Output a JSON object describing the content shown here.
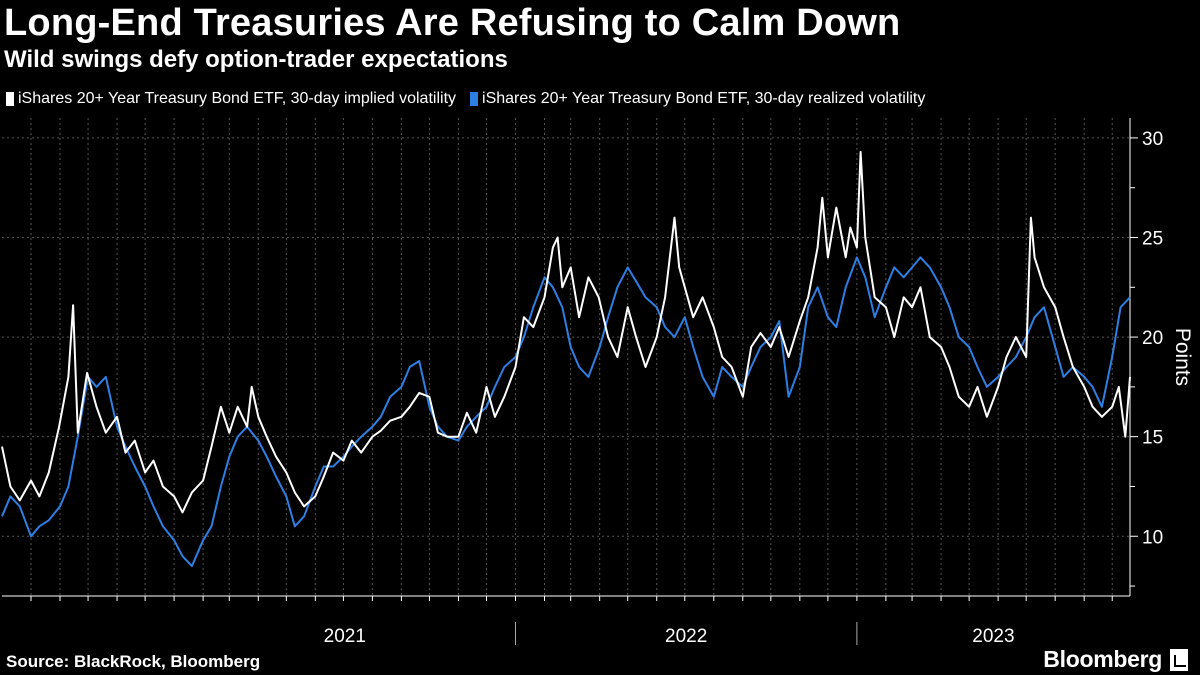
{
  "header": {
    "title": "Long-End Treasuries Are Refusing to Calm Down",
    "subtitle": "Wild swings defy option-trader expectations"
  },
  "footer": {
    "source": "Source: BlackRock, Bloomberg",
    "brand": "Bloomberg"
  },
  "colors": {
    "implied": "#ffffff",
    "realized": "#2e7fe3",
    "grid": "#555555",
    "background": "#000000"
  },
  "chart_data": {
    "type": "line",
    "ylabel": "Points",
    "ylim": [
      7,
      31
    ],
    "yticks": [
      10,
      15,
      20,
      25,
      30
    ],
    "xlim": [
      "2020-07-01",
      "2023-10-20"
    ],
    "year_labels": [
      "2021",
      "2022",
      "2023"
    ],
    "grid": true,
    "legend_position": "top-left",
    "series": [
      {
        "name": "iShares 20+ Year Treasury Bond ETF, 30-day implied volatility",
        "color": "#ffffff",
        "points": [
          [
            "2020-07-01",
            14.5
          ],
          [
            "2020-07-10",
            12.5
          ],
          [
            "2020-07-20",
            11.8
          ],
          [
            "2020-08-01",
            12.8
          ],
          [
            "2020-08-10",
            12.0
          ],
          [
            "2020-08-20",
            13.2
          ],
          [
            "2020-08-31",
            15.5
          ],
          [
            "2020-09-10",
            18.0
          ],
          [
            "2020-09-15",
            21.6
          ],
          [
            "2020-09-20",
            15.2
          ],
          [
            "2020-09-30",
            18.2
          ],
          [
            "2020-10-10",
            16.5
          ],
          [
            "2020-10-20",
            15.2
          ],
          [
            "2020-11-01",
            16.0
          ],
          [
            "2020-11-10",
            14.2
          ],
          [
            "2020-11-20",
            14.8
          ],
          [
            "2020-12-01",
            13.2
          ],
          [
            "2020-12-10",
            13.8
          ],
          [
            "2020-12-20",
            12.5
          ],
          [
            "2021-01-01",
            12.0
          ],
          [
            "2021-01-10",
            11.2
          ],
          [
            "2021-01-20",
            12.2
          ],
          [
            "2021-02-01",
            12.8
          ],
          [
            "2021-02-10",
            14.5
          ],
          [
            "2021-02-20",
            16.5
          ],
          [
            "2021-03-01",
            15.2
          ],
          [
            "2021-03-10",
            16.5
          ],
          [
            "2021-03-20",
            15.5
          ],
          [
            "2021-03-25",
            17.5
          ],
          [
            "2021-04-01",
            16.0
          ],
          [
            "2021-04-10",
            15.0
          ],
          [
            "2021-04-20",
            14.0
          ],
          [
            "2021-05-01",
            13.2
          ],
          [
            "2021-05-10",
            12.2
          ],
          [
            "2021-05-20",
            11.5
          ],
          [
            "2021-06-01",
            12.0
          ],
          [
            "2021-06-10",
            13.0
          ],
          [
            "2021-06-20",
            14.2
          ],
          [
            "2021-07-01",
            13.8
          ],
          [
            "2021-07-10",
            14.8
          ],
          [
            "2021-07-20",
            14.2
          ],
          [
            "2021-08-01",
            15.0
          ],
          [
            "2021-08-10",
            15.3
          ],
          [
            "2021-08-20",
            15.8
          ],
          [
            "2021-09-01",
            16.0
          ],
          [
            "2021-09-10",
            16.5
          ],
          [
            "2021-09-20",
            17.2
          ],
          [
            "2021-10-01",
            17.0
          ],
          [
            "2021-10-10",
            15.2
          ],
          [
            "2021-10-20",
            15.0
          ],
          [
            "2021-11-01",
            15.0
          ],
          [
            "2021-11-10",
            16.2
          ],
          [
            "2021-11-20",
            15.2
          ],
          [
            "2021-12-01",
            17.5
          ],
          [
            "2021-12-10",
            16.0
          ],
          [
            "2021-12-20",
            17.0
          ],
          [
            "2022-01-01",
            18.5
          ],
          [
            "2022-01-10",
            21.0
          ],
          [
            "2022-01-20",
            20.5
          ],
          [
            "2022-02-01",
            22.0
          ],
          [
            "2022-02-10",
            24.5
          ],
          [
            "2022-02-15",
            25.0
          ],
          [
            "2022-02-20",
            22.5
          ],
          [
            "2022-03-01",
            23.5
          ],
          [
            "2022-03-10",
            21.0
          ],
          [
            "2022-03-20",
            23.0
          ],
          [
            "2022-03-31",
            22.0
          ],
          [
            "2022-04-10",
            20.0
          ],
          [
            "2022-04-20",
            19.0
          ],
          [
            "2022-05-01",
            21.5
          ],
          [
            "2022-05-10",
            20.0
          ],
          [
            "2022-05-20",
            18.5
          ],
          [
            "2022-06-01",
            20.0
          ],
          [
            "2022-06-10",
            22.0
          ],
          [
            "2022-06-20",
            26.0
          ],
          [
            "2022-06-25",
            23.5
          ],
          [
            "2022-07-01",
            22.5
          ],
          [
            "2022-07-10",
            21.0
          ],
          [
            "2022-07-20",
            22.0
          ],
          [
            "2022-08-01",
            20.5
          ],
          [
            "2022-08-10",
            19.0
          ],
          [
            "2022-08-20",
            18.5
          ],
          [
            "2022-09-01",
            17.0
          ],
          [
            "2022-09-10",
            19.5
          ],
          [
            "2022-09-20",
            20.2
          ],
          [
            "2022-10-01",
            19.5
          ],
          [
            "2022-10-10",
            20.5
          ],
          [
            "2022-10-20",
            19.0
          ],
          [
            "2022-11-01",
            20.8
          ],
          [
            "2022-11-10",
            22.0
          ],
          [
            "2022-11-20",
            24.5
          ],
          [
            "2022-11-25",
            27.0
          ],
          [
            "2022-12-01",
            24.0
          ],
          [
            "2022-12-10",
            26.5
          ],
          [
            "2022-12-20",
            24.0
          ],
          [
            "2022-12-25",
            25.5
          ],
          [
            "2023-01-01",
            24.5
          ],
          [
            "2023-01-05",
            29.3
          ],
          [
            "2023-01-10",
            25.0
          ],
          [
            "2023-01-20",
            22.0
          ],
          [
            "2023-02-01",
            21.5
          ],
          [
            "2023-02-10",
            20.0
          ],
          [
            "2023-02-20",
            22.0
          ],
          [
            "2023-03-01",
            21.5
          ],
          [
            "2023-03-10",
            22.5
          ],
          [
            "2023-03-20",
            20.0
          ],
          [
            "2023-04-01",
            19.5
          ],
          [
            "2023-04-10",
            18.5
          ],
          [
            "2023-04-20",
            17.0
          ],
          [
            "2023-05-01",
            16.5
          ],
          [
            "2023-05-10",
            17.5
          ],
          [
            "2023-05-20",
            16.0
          ],
          [
            "2023-06-01",
            17.5
          ],
          [
            "2023-06-10",
            19.0
          ],
          [
            "2023-06-20",
            20.0
          ],
          [
            "2023-07-01",
            19.0
          ],
          [
            "2023-07-06",
            26.0
          ],
          [
            "2023-07-10",
            24.0
          ],
          [
            "2023-07-20",
            22.5
          ],
          [
            "2023-08-01",
            21.5
          ],
          [
            "2023-08-10",
            20.0
          ],
          [
            "2023-08-20",
            18.5
          ],
          [
            "2023-09-01",
            17.5
          ],
          [
            "2023-09-10",
            16.5
          ],
          [
            "2023-09-20",
            16.0
          ],
          [
            "2023-10-01",
            16.5
          ],
          [
            "2023-10-08",
            17.5
          ],
          [
            "2023-10-15",
            15.0
          ],
          [
            "2023-10-20",
            18.0
          ]
        ]
      },
      {
        "name": "iShares 20+ Year Treasury Bond ETF, 30-day realized volatility",
        "color": "#2e7fe3",
        "points": [
          [
            "2020-07-01",
            11.0
          ],
          [
            "2020-07-10",
            12.0
          ],
          [
            "2020-07-20",
            11.5
          ],
          [
            "2020-08-01",
            10.0
          ],
          [
            "2020-08-10",
            10.5
          ],
          [
            "2020-08-20",
            10.8
          ],
          [
            "2020-09-01",
            11.5
          ],
          [
            "2020-09-10",
            12.5
          ],
          [
            "2020-09-20",
            15.0
          ],
          [
            "2020-10-01",
            18.0
          ],
          [
            "2020-10-10",
            17.5
          ],
          [
            "2020-10-20",
            18.0
          ],
          [
            "2020-11-01",
            15.5
          ],
          [
            "2020-11-10",
            14.5
          ],
          [
            "2020-11-20",
            13.5
          ],
          [
            "2020-12-01",
            12.5
          ],
          [
            "2020-12-10",
            11.5
          ],
          [
            "2020-12-20",
            10.5
          ],
          [
            "2021-01-01",
            9.8
          ],
          [
            "2021-01-10",
            9.0
          ],
          [
            "2021-01-20",
            8.5
          ],
          [
            "2021-02-01",
            9.8
          ],
          [
            "2021-02-10",
            10.5
          ],
          [
            "2021-02-20",
            12.5
          ],
          [
            "2021-03-01",
            14.0
          ],
          [
            "2021-03-10",
            15.0
          ],
          [
            "2021-03-20",
            15.5
          ],
          [
            "2021-04-01",
            14.8
          ],
          [
            "2021-04-10",
            14.0
          ],
          [
            "2021-04-20",
            13.0
          ],
          [
            "2021-05-01",
            12.0
          ],
          [
            "2021-05-10",
            10.5
          ],
          [
            "2021-05-20",
            11.0
          ],
          [
            "2021-06-01",
            12.5
          ],
          [
            "2021-06-10",
            13.5
          ],
          [
            "2021-06-20",
            13.5
          ],
          [
            "2021-07-01",
            14.0
          ],
          [
            "2021-07-10",
            14.5
          ],
          [
            "2021-07-20",
            15.0
          ],
          [
            "2021-08-01",
            15.5
          ],
          [
            "2021-08-10",
            16.0
          ],
          [
            "2021-08-20",
            17.0
          ],
          [
            "2021-09-01",
            17.5
          ],
          [
            "2021-09-10",
            18.5
          ],
          [
            "2021-09-20",
            18.8
          ],
          [
            "2021-10-01",
            16.5
          ],
          [
            "2021-10-10",
            15.5
          ],
          [
            "2021-10-20",
            15.0
          ],
          [
            "2021-11-01",
            14.8
          ],
          [
            "2021-11-10",
            15.5
          ],
          [
            "2021-11-20",
            16.0
          ],
          [
            "2021-12-01",
            16.5
          ],
          [
            "2021-12-10",
            17.5
          ],
          [
            "2021-12-20",
            18.5
          ],
          [
            "2022-01-01",
            19.0
          ],
          [
            "2022-01-10",
            20.0
          ],
          [
            "2022-01-20",
            21.5
          ],
          [
            "2022-02-01",
            23.0
          ],
          [
            "2022-02-10",
            22.5
          ],
          [
            "2022-02-20",
            21.5
          ],
          [
            "2022-03-01",
            19.5
          ],
          [
            "2022-03-10",
            18.5
          ],
          [
            "2022-03-20",
            18.0
          ],
          [
            "2022-04-01",
            19.5
          ],
          [
            "2022-04-10",
            21.0
          ],
          [
            "2022-04-20",
            22.5
          ],
          [
            "2022-05-01",
            23.5
          ],
          [
            "2022-05-10",
            22.8
          ],
          [
            "2022-05-20",
            22.0
          ],
          [
            "2022-06-01",
            21.5
          ],
          [
            "2022-06-10",
            20.5
          ],
          [
            "2022-06-20",
            20.0
          ],
          [
            "2022-07-01",
            21.0
          ],
          [
            "2022-07-10",
            19.5
          ],
          [
            "2022-07-20",
            18.0
          ],
          [
            "2022-08-01",
            17.0
          ],
          [
            "2022-08-10",
            18.5
          ],
          [
            "2022-08-20",
            18.0
          ],
          [
            "2022-09-01",
            17.5
          ],
          [
            "2022-09-10",
            18.5
          ],
          [
            "2022-09-20",
            19.5
          ],
          [
            "2022-10-01",
            20.0
          ],
          [
            "2022-10-10",
            20.8
          ],
          [
            "2022-10-20",
            17.0
          ],
          [
            "2022-11-01",
            18.5
          ],
          [
            "2022-11-10",
            21.5
          ],
          [
            "2022-11-20",
            22.5
          ],
          [
            "2022-12-01",
            21.0
          ],
          [
            "2022-12-10",
            20.5
          ],
          [
            "2022-12-20",
            22.5
          ],
          [
            "2023-01-01",
            24.0
          ],
          [
            "2023-01-10",
            23.0
          ],
          [
            "2023-01-20",
            21.0
          ],
          [
            "2023-02-01",
            22.5
          ],
          [
            "2023-02-10",
            23.5
          ],
          [
            "2023-02-20",
            23.0
          ],
          [
            "2023-03-01",
            23.5
          ],
          [
            "2023-03-10",
            24.0
          ],
          [
            "2023-03-20",
            23.5
          ],
          [
            "2023-04-01",
            22.5
          ],
          [
            "2023-04-10",
            21.5
          ],
          [
            "2023-04-20",
            20.0
          ],
          [
            "2023-05-01",
            19.5
          ],
          [
            "2023-05-10",
            18.5
          ],
          [
            "2023-05-20",
            17.5
          ],
          [
            "2023-06-01",
            18.0
          ],
          [
            "2023-06-10",
            18.5
          ],
          [
            "2023-06-20",
            19.0
          ],
          [
            "2023-07-01",
            20.0
          ],
          [
            "2023-07-10",
            21.0
          ],
          [
            "2023-07-20",
            21.5
          ],
          [
            "2023-08-01",
            19.5
          ],
          [
            "2023-08-10",
            18.0
          ],
          [
            "2023-08-20",
            18.5
          ],
          [
            "2023-09-01",
            18.0
          ],
          [
            "2023-09-10",
            17.5
          ],
          [
            "2023-09-20",
            16.5
          ],
          [
            "2023-10-01",
            19.0
          ],
          [
            "2023-10-10",
            21.5
          ],
          [
            "2023-10-20",
            22.0
          ]
        ]
      }
    ]
  }
}
